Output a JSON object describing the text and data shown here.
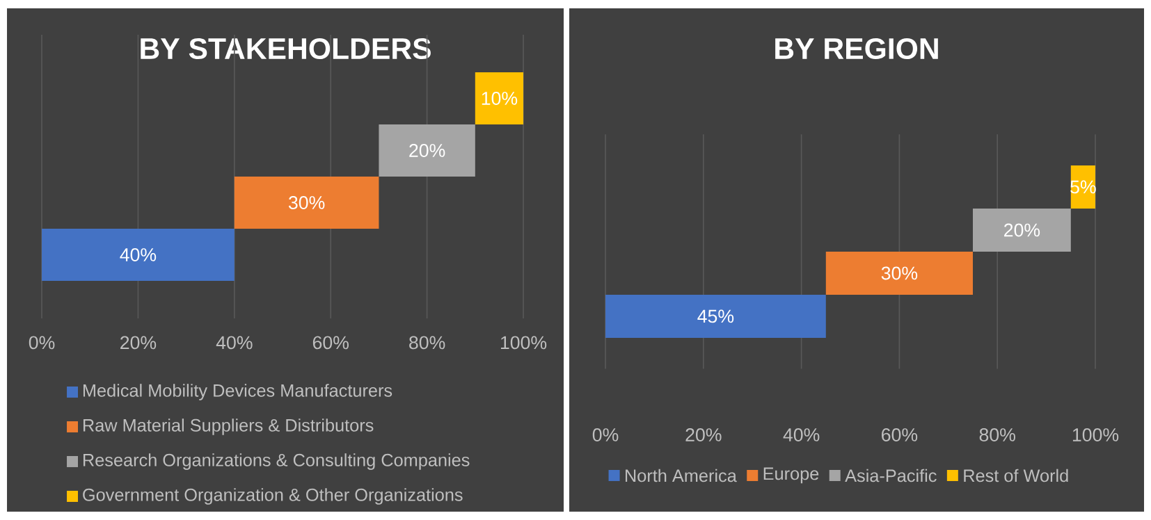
{
  "chart_data": [
    {
      "type": "bar",
      "orientation": "horizontal",
      "title": "BY STAKEHOLDERS",
      "categories": [
        null,
        null,
        null,
        null
      ],
      "xlim": [
        0,
        100
      ],
      "xticks": [
        {
          "value": 0,
          "label": "0%"
        },
        {
          "value": 20,
          "label": "20%"
        },
        {
          "value": 40,
          "label": "40%"
        },
        {
          "value": 60,
          "label": "60%"
        },
        {
          "value": 80,
          "label": "80%"
        },
        {
          "value": 100,
          "label": "100%"
        }
      ],
      "grid": "x",
      "legend": "bottom",
      "series": [
        {
          "name": "Medical Mobility Devices Manufacturers",
          "color": "#4472c4",
          "values": [
            null,
            null,
            null,
            40
          ],
          "base": [
            null,
            null,
            null,
            0
          ],
          "value_labels": [
            null,
            null,
            null,
            "40%"
          ]
        },
        {
          "name": "Raw Material Suppliers & Distributors",
          "color": "#ed7d31",
          "values": [
            null,
            null,
            30,
            null
          ],
          "base": [
            null,
            null,
            40,
            null
          ],
          "value_labels": [
            null,
            null,
            "30%",
            null
          ]
        },
        {
          "name": "Research Organizations & Consulting Companies",
          "color": "#a5a5a5",
          "values": [
            null,
            20,
            null,
            null
          ],
          "base": [
            null,
            70,
            null,
            null
          ],
          "value_labels": [
            null,
            "20%",
            null,
            null
          ]
        },
        {
          "name": "Government Organization & Other Organizations",
          "color": "#ffc000",
          "values": [
            10,
            null,
            null,
            null
          ],
          "base": [
            90,
            null,
            null,
            null
          ],
          "value_labels": [
            "10%",
            null,
            null,
            null
          ]
        }
      ]
    },
    {
      "type": "bar",
      "orientation": "horizontal",
      "title": "BY REGION",
      "categories": [
        null,
        null,
        null,
        null
      ],
      "xlim": [
        0,
        100
      ],
      "xticks": [
        {
          "value": 0,
          "label": "0%"
        },
        {
          "value": 20,
          "label": "20%"
        },
        {
          "value": 40,
          "label": "40%"
        },
        {
          "value": 60,
          "label": "60%"
        },
        {
          "value": 80,
          "label": "80%"
        },
        {
          "value": 100,
          "label": "100%"
        }
      ],
      "grid": "x",
      "legend": "bottom",
      "series": [
        {
          "name": "North America",
          "color": "#4472c4",
          "values": [
            null,
            null,
            null,
            45
          ],
          "base": [
            null,
            null,
            null,
            0
          ],
          "value_labels": [
            null,
            null,
            null,
            "45%"
          ]
        },
        {
          "name": "Europe",
          "color": "#ed7d31",
          "values": [
            null,
            null,
            30,
            null
          ],
          "base": [
            null,
            null,
            45,
            null
          ],
          "value_labels": [
            null,
            null,
            "30%",
            null
          ]
        },
        {
          "name": "Asia-Pacific",
          "color": "#a5a5a5",
          "values": [
            null,
            20,
            null,
            null
          ],
          "base": [
            null,
            75,
            null,
            null
          ],
          "value_labels": [
            null,
            "20%",
            null,
            null
          ]
        },
        {
          "name": "Rest of World",
          "color": "#ffc000",
          "values": [
            5,
            null,
            null,
            null
          ],
          "base": [
            95,
            null,
            null,
            null
          ],
          "value_labels": [
            "5%",
            null,
            null,
            null
          ]
        }
      ]
    }
  ]
}
